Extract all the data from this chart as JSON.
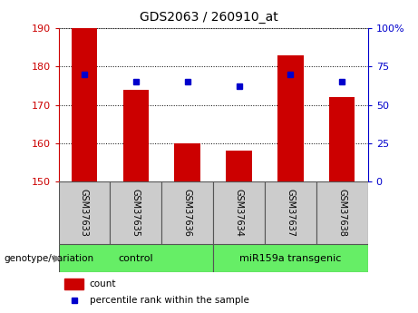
{
  "title": "GDS2063 / 260910_at",
  "categories": [
    "GSM37633",
    "GSM37635",
    "GSM37636",
    "GSM37634",
    "GSM37637",
    "GSM37638"
  ],
  "count_values": [
    190,
    174,
    160,
    158,
    183,
    172
  ],
  "percentile_values": [
    70,
    65,
    65,
    62,
    70,
    65
  ],
  "ylim_left": [
    150,
    190
  ],
  "ylim_right": [
    0,
    100
  ],
  "yticks_left": [
    150,
    160,
    170,
    180,
    190
  ],
  "yticks_right": [
    0,
    25,
    50,
    75,
    100
  ],
  "ytick_labels_right": [
    "0",
    "25",
    "50",
    "75",
    "100%"
  ],
  "bar_color": "#cc0000",
  "dot_color": "#0000cc",
  "control_label": "control",
  "transgenic_label": "miR159a transgenic",
  "group_label": "genotype/variation",
  "legend_count": "count",
  "legend_percentile": "percentile rank within the sample",
  "left_tick_color": "#cc0000",
  "right_tick_color": "#0000cc",
  "bar_width": 0.5,
  "label_bg": "#cccccc",
  "group_bg": "#66ee66"
}
